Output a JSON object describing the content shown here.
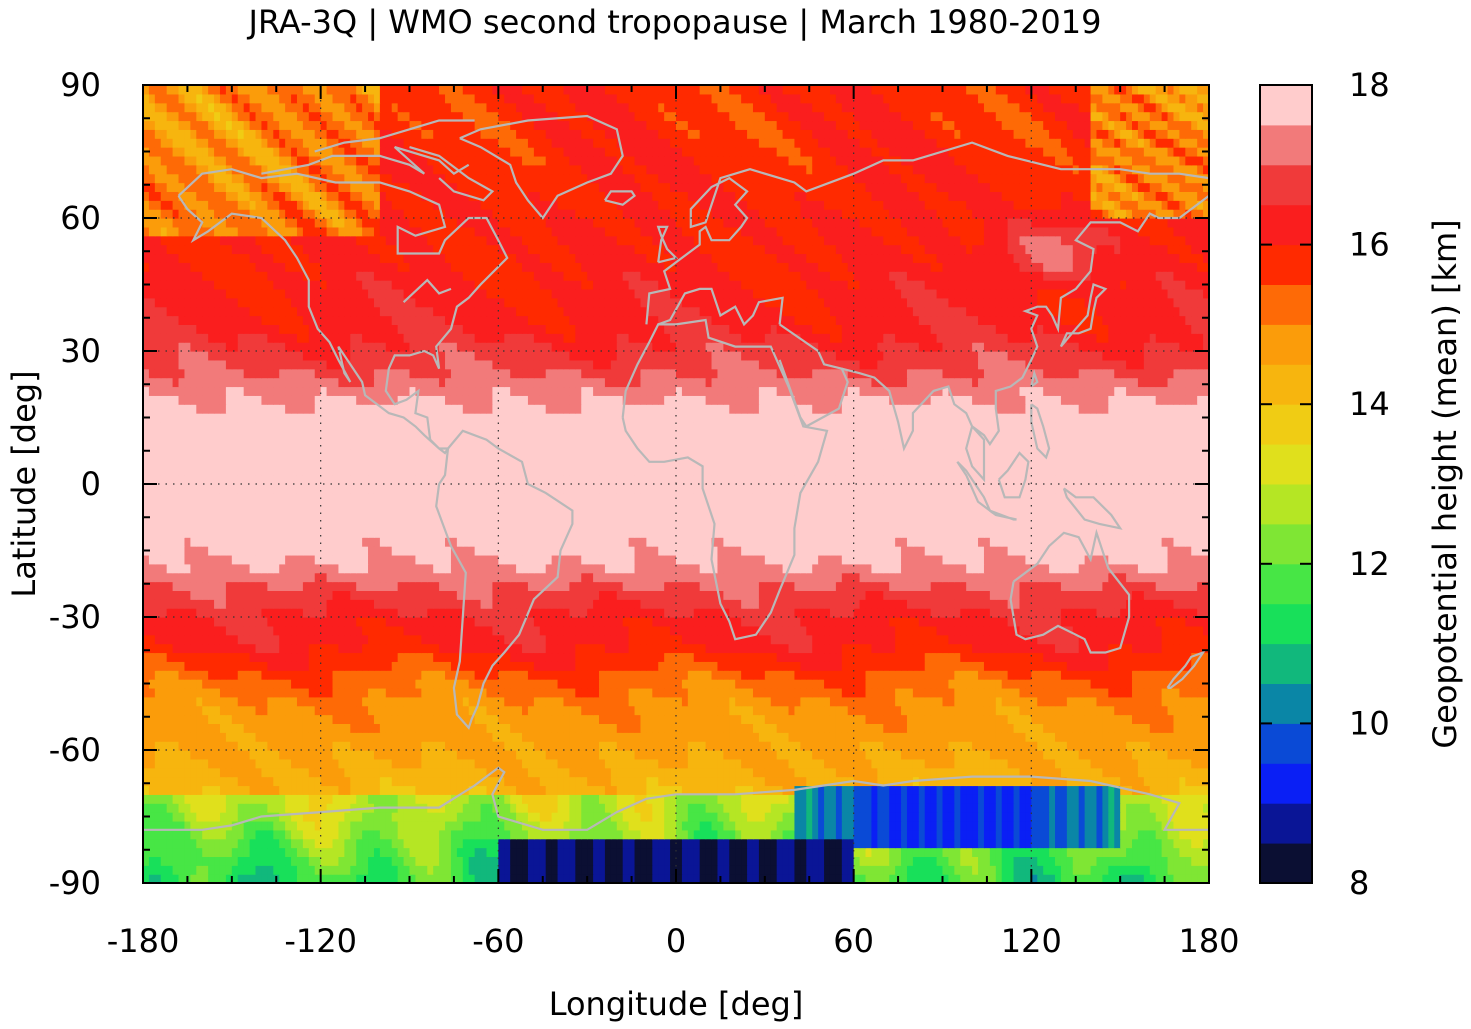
{
  "chart_data": {
    "type": "heatmap",
    "title": "JRA-3Q | WMO second tropopause | March 1980-2019",
    "xlabel": "Longitude [deg]",
    "ylabel": "Latitude [deg]",
    "xlim": [
      -180,
      180
    ],
    "ylim": [
      -90,
      90
    ],
    "x_ticks": [
      -180,
      -120,
      -60,
      0,
      60,
      120,
      180
    ],
    "y_ticks": [
      -90,
      -60,
      -30,
      0,
      30,
      60,
      90
    ],
    "x_tick_labels": [
      "-180",
      "-120",
      "-60",
      "0",
      "60",
      "120",
      "180"
    ],
    "y_tick_labels": [
      "-90",
      "-60",
      "-30",
      "0",
      "30",
      "60",
      "90"
    ],
    "grid": true,
    "colorbar": {
      "label": "Geopotential height (mean) [km]",
      "range": [
        8,
        18
      ],
      "ticks": [
        8,
        10,
        12,
        14,
        16,
        18
      ],
      "tick_labels": [
        "8",
        "10",
        "12",
        "14",
        "16",
        "18"
      ],
      "levels": [
        8.0,
        8.5,
        9.0,
        9.5,
        10.0,
        10.5,
        11.0,
        11.5,
        12.0,
        12.5,
        13.0,
        13.5,
        14.0,
        14.5,
        15.0,
        15.5,
        16.0,
        16.5,
        17.0,
        17.5,
        18.0
      ],
      "colors": [
        "#0b0f33",
        "#0a1596",
        "#0a1ff5",
        "#0a4ad6",
        "#0a86a6",
        "#11b87c",
        "#18e05a",
        "#47e645",
        "#7fe634",
        "#b5e624",
        "#e0e01c",
        "#f0cc14",
        "#f7b50e",
        "#fb9c0a",
        "#fe6a06",
        "#ff2a00",
        "#fa1e1e",
        "#f03a3a",
        "#f27a7a",
        "#ffcccc"
      ]
    },
    "lat_profile": {
      "lat": [
        -90,
        -80,
        -75,
        -70,
        -60,
        -50,
        -45,
        -40,
        -35,
        -30,
        -25,
        -20,
        -15,
        -10,
        0,
        10,
        15,
        20,
        25,
        30,
        40,
        50,
        60,
        70,
        80,
        90
      ],
      "height_km": [
        12.6,
        13.4,
        13.9,
        14.2,
        14.6,
        14.9,
        15.2,
        15.8,
        16.2,
        16.4,
        16.8,
        17.3,
        17.7,
        17.9,
        17.95,
        17.9,
        17.8,
        17.4,
        17.0,
        16.6,
        16.2,
        16.0,
        16.0,
        15.9,
        15.8,
        15.8
      ]
    },
    "antarctic_low": {
      "lon_range": [
        -60,
        60
      ],
      "lat_range": [
        -90,
        -80
      ],
      "height_km": 8.2
    },
    "east_antarctic_low": {
      "lon_range": [
        40,
        150
      ],
      "lat_range": [
        -82,
        -67
      ],
      "height_km": 10.5
    },
    "map_overlay": "coastlines"
  }
}
